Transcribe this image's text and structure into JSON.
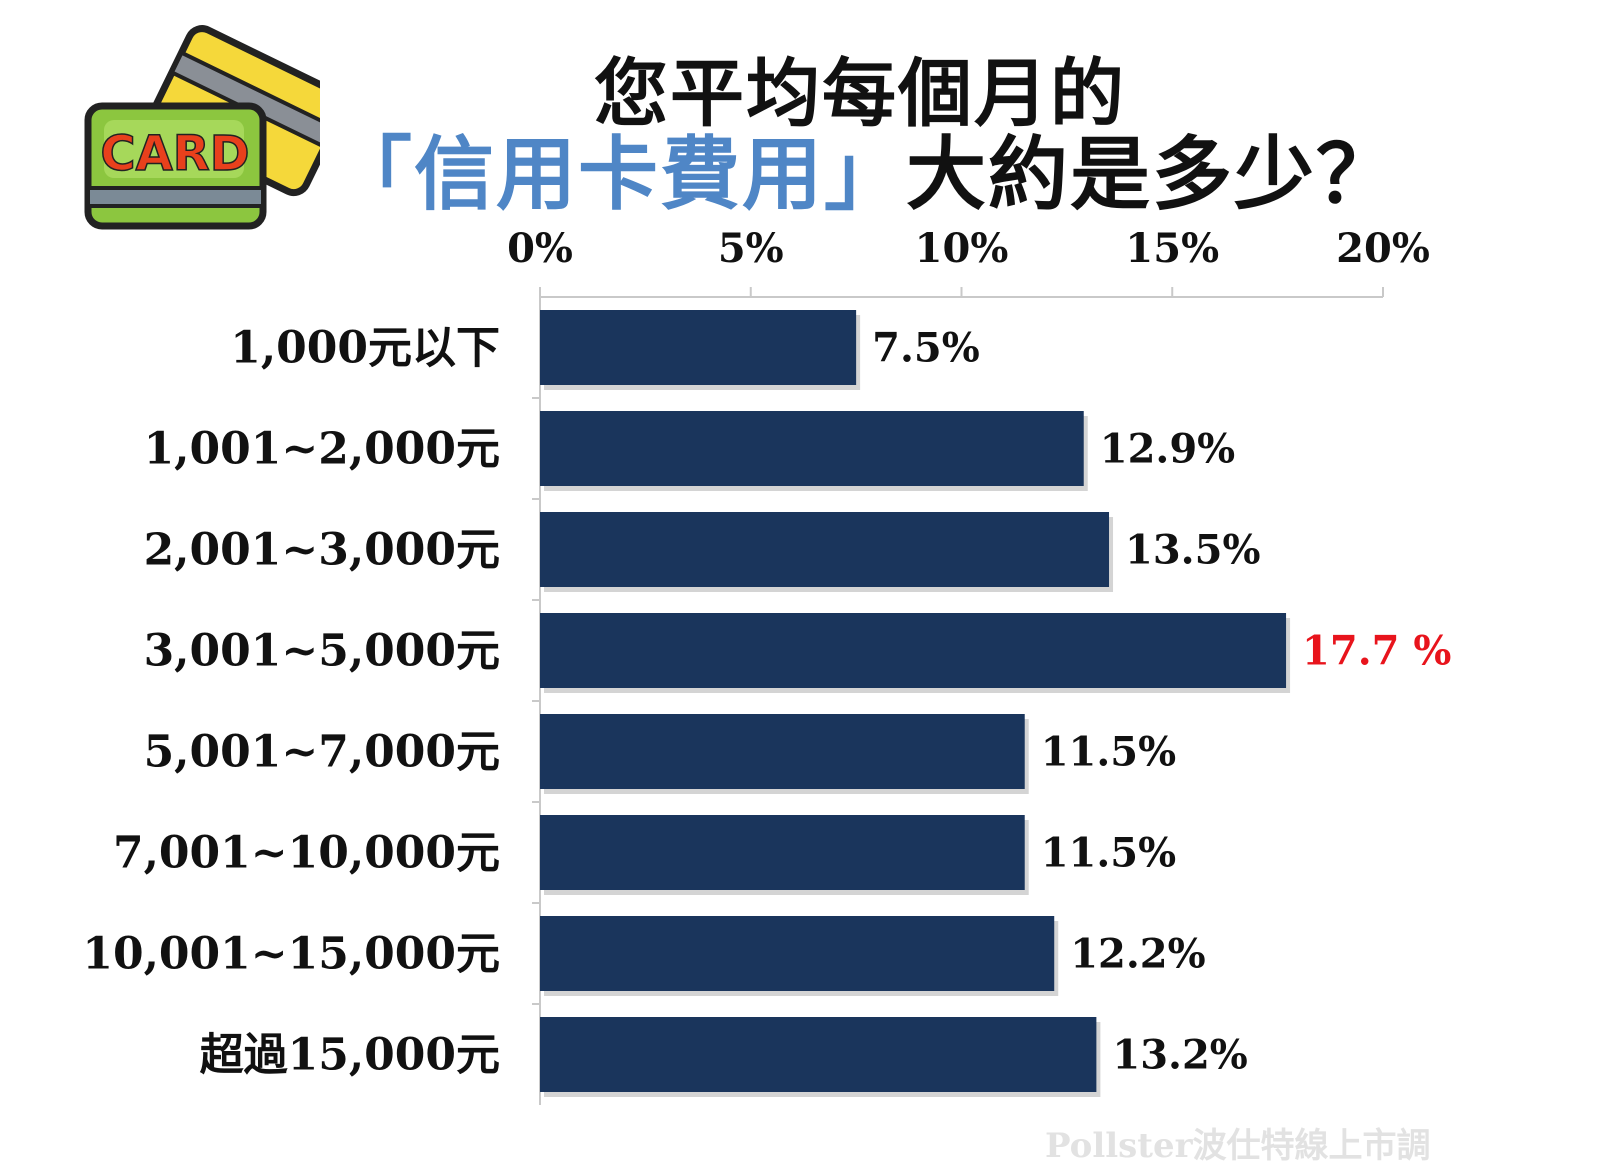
{
  "title": {
    "line1": "您平均每個月的",
    "line2_highlight": "「信用卡費用」",
    "line2_rest": "大約是多少？"
  },
  "logo": {
    "text": "CARD",
    "icon": "credit-card-icon"
  },
  "watermark": "Pollster波仕特線上市調",
  "colors": {
    "bar": "#1a355c",
    "highlight_label": "#e8141c",
    "label": "#111111",
    "title_highlight": "#4f86c6"
  },
  "chart_data": {
    "type": "bar",
    "orientation": "horizontal",
    "categories": [
      "1,000元以下",
      "1,001~2,000元",
      "2,001~3,000元",
      "3,001~5,000元",
      "5,001~7,000元",
      "7,001~10,000元",
      "10,001~15,000元",
      "超過15,000元"
    ],
    "values": [
      7.5,
      12.9,
      13.5,
      17.7,
      11.5,
      11.5,
      12.2,
      13.2
    ],
    "value_labels": [
      "7.5%",
      "12.9%",
      "13.5%",
      "17.7 %",
      "11.5%",
      "11.5%",
      "12.2%",
      "13.2%"
    ],
    "highlight_index": 3,
    "xlim": [
      0,
      20
    ],
    "xticks": [
      0,
      5,
      10,
      15,
      20
    ],
    "xtick_labels": [
      "0%",
      "5%",
      "10%",
      "15%",
      "20%"
    ],
    "x_axis_position": "top",
    "grid": false
  }
}
